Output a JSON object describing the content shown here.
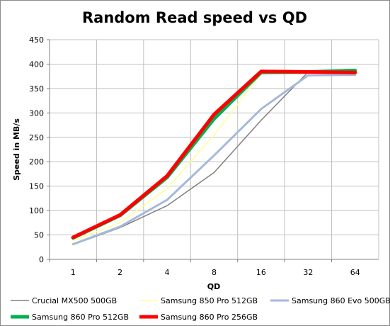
{
  "chart_data": {
    "type": "line",
    "title": "Random Read speed vs QD",
    "xlabel": "QD",
    "ylabel": "Speed in MB/s",
    "categories": [
      "1",
      "2",
      "4",
      "8",
      "16",
      "32",
      "64"
    ],
    "ylim": [
      0,
      450
    ],
    "yticks": [
      0,
      50,
      100,
      150,
      200,
      250,
      300,
      350,
      400,
      450
    ],
    "grid": true,
    "legend": "bottom",
    "series": [
      {
        "name": "Crucial MX500 500GB",
        "values": [
          30,
          65,
          110,
          178,
          285,
          384,
          383
        ],
        "color": "#808080"
      },
      {
        "name": "Samsung 850 Pro 512GB",
        "values": [
          38,
          75,
          145,
          255,
          380,
          383,
          383
        ],
        "color": "#ffff99"
      },
      {
        "name": "Samsung 860 Evo 500GB",
        "values": [
          31,
          67,
          122,
          213,
          308,
          377,
          378
        ],
        "color": "#a6b9d9"
      },
      {
        "name": "Samsung 860 Pro 512GB",
        "values": [
          44,
          90,
          168,
          288,
          383,
          384,
          387
        ],
        "color": "#00b050"
      },
      {
        "name": "Samsung 860 Pro 256GB",
        "values": [
          45,
          91,
          171,
          297,
          385,
          384,
          383
        ],
        "color": "#ff0000"
      }
    ]
  }
}
